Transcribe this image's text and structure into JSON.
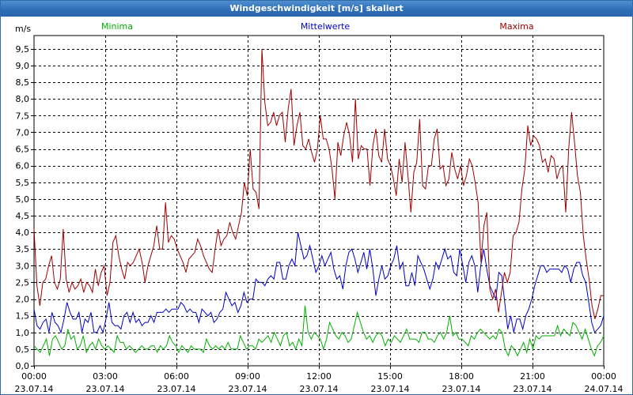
{
  "window": {
    "title": "Windgeschwindigkeit [m/s] skaliert"
  },
  "colors": {
    "minima": "#00b000",
    "mittelwerte": "#0000c8",
    "maxima": "#a00000",
    "grid": "#000000",
    "axis": "#000000"
  },
  "chart_data": {
    "type": "line",
    "title": "Windgeschwindigkeit [m/s] skaliert",
    "ylabel": "m/s",
    "xlabel": "",
    "ylim": [
      0,
      9.9
    ],
    "xlim": [
      0,
      24
    ],
    "grid": true,
    "legend_position": "top",
    "y_ticks": [
      0,
      0.5,
      1,
      1.5,
      2,
      2.5,
      3,
      3.5,
      4,
      4.5,
      5,
      5.5,
      6,
      6.5,
      7,
      7.5,
      8,
      8.5,
      9,
      9.5
    ],
    "y_tick_labels": [
      "0,0",
      "0,5",
      "1,0",
      "1,5",
      "2,0",
      "2,5",
      "3,0",
      "3,5",
      "4,0",
      "4,5",
      "5,0",
      "5,5",
      "6,0",
      "6,5",
      "7,0",
      "7,5",
      "8,0",
      "8,5",
      "9,0",
      "9,5"
    ],
    "x_ticks": [
      {
        "value": 0,
        "time": "00:00",
        "date": "23.07.14"
      },
      {
        "value": 3,
        "time": "03:00",
        "date": "23.07.14"
      },
      {
        "value": 6,
        "time": "06:00",
        "date": "23.07.14"
      },
      {
        "value": 9,
        "time": "09:00",
        "date": "23.07.14"
      },
      {
        "value": 12,
        "time": "12:00",
        "date": "23.07.14"
      },
      {
        "value": 15,
        "time": "15:00",
        "date": "23.07.14"
      },
      {
        "value": 18,
        "time": "18:00",
        "date": "23.07.14"
      },
      {
        "value": 21,
        "time": "21:00",
        "date": "23.07.14"
      },
      {
        "value": 24,
        "time": "00:00",
        "date": "24.07.14"
      }
    ],
    "series": [
      {
        "name": "Minima",
        "key": "minima",
        "values": [
          0.6,
          0.5,
          0.4,
          0.6,
          0.8,
          0.3,
          0.8,
          0.9,
          0.7,
          0.5,
          0.6,
          1.1,
          0.8,
          0.9,
          0.5,
          0.6,
          0.9,
          0.4,
          0.6,
          0.7,
          0.5,
          0.8,
          0.6,
          0.5,
          0.6,
          0.5,
          0.4,
          0.9,
          0.7,
          0.7,
          0.5,
          0.6,
          0.5,
          0.4,
          0.5,
          0.6,
          0.5,
          0.5,
          0.6,
          0.6,
          0.4,
          0.6,
          0.5,
          0.6,
          0.9,
          0.7,
          0.6,
          0.4,
          0.6,
          0.5,
          0.4,
          0.6,
          0.5,
          0.5,
          0.5,
          0.4,
          0.8,
          0.6,
          0.5,
          0.6,
          0.5,
          0.6,
          0.5,
          0.7,
          0.5,
          0.5,
          0.5,
          0.9,
          0.7,
          0.5,
          0.6,
          0.6,
          0.5,
          0.8,
          0.7,
          0.8,
          0.9,
          0.7,
          1.0,
          0.8,
          0.6,
          0.9,
          1.0,
          0.6,
          0.7,
          0.5,
          0.8,
          0.6,
          1.8,
          1.0,
          0.8,
          1.0,
          0.9,
          0.8,
          0.5,
          0.8,
          1.3,
          1.1,
          0.9,
          0.8,
          1.0,
          0.9,
          0.7,
          0.8,
          1.2,
          1.6,
          1.3,
          1.0,
          0.8,
          0.9,
          0.7,
          0.9,
          1.0,
          0.9,
          0.6,
          0.8,
          0.7,
          0.9,
          0.8,
          0.7,
          0.9,
          1.1,
          0.8,
          0.8,
          0.8,
          0.7,
          1.0,
          1.0,
          0.8,
          0.8,
          0.7,
          0.9,
          1.0,
          0.8,
          1.0,
          1.5,
          0.9,
          1.0,
          0.8,
          0.8,
          0.7,
          0.6,
          0.9,
          0.8,
          1.0,
          1.1,
          1.0,
          0.9,
          0.8,
          0.9,
          0.8,
          1.1,
          1.0,
          0.5,
          0.3,
          0.6,
          0.5,
          0.3,
          0.5,
          0.7,
          0.4,
          0.8,
          0.5,
          0.9,
          0.8,
          0.9,
          0.9,
          0.9,
          0.9,
          0.9,
          1.2,
          0.9,
          1.1,
          1.0,
          0.9,
          1.3,
          1.2,
          1.0,
          0.8,
          1.1,
          0.8,
          0.5,
          0.3,
          0.6,
          0.7,
          0.9
        ]
      },
      {
        "name": "Mittelwerte",
        "key": "mittelwerte",
        "values": [
          1.7,
          1.2,
          1.1,
          1.3,
          1.4,
          1.0,
          1.6,
          1.3,
          1.2,
          1.0,
          1.4,
          1.9,
          1.6,
          1.4,
          1.4,
          1.6,
          1.0,
          1.4,
          1.3,
          1.6,
          1.0,
          1.0,
          1.2,
          1.0,
          1.4,
          1.9,
          1.3,
          1.2,
          1.2,
          1.1,
          1.5,
          1.6,
          1.3,
          1.6,
          1.3,
          1.4,
          1.2,
          1.3,
          1.3,
          1.5,
          1.3,
          1.6,
          1.6,
          1.6,
          1.7,
          1.6,
          1.7,
          1.7,
          1.7,
          1.9,
          1.8,
          1.6,
          1.7,
          1.6,
          1.6,
          1.3,
          1.7,
          1.6,
          1.5,
          1.6,
          1.3,
          1.4,
          1.6,
          1.7,
          2.2,
          2.0,
          1.8,
          1.9,
          1.6,
          1.8,
          2.2,
          1.9,
          2.0,
          2.0,
          2.6,
          2.5,
          2.5,
          2.4,
          2.6,
          2.7,
          2.6,
          3.1,
          3.1,
          2.6,
          2.6,
          3.0,
          3.2,
          3.0,
          4.0,
          3.6,
          3.2,
          3.3,
          3.6,
          3.2,
          2.8,
          3.0,
          3.3,
          3.0,
          3.2,
          3.4,
          2.9,
          2.6,
          2.7,
          2.3,
          3.0,
          3.4,
          3.5,
          3.2,
          2.8,
          3.1,
          3.4,
          2.9,
          3.5,
          2.9,
          2.1,
          2.6,
          3.0,
          2.6,
          2.7,
          3.0,
          3.2,
          3.6,
          2.9,
          3.1,
          2.4,
          2.4,
          2.8,
          2.4,
          3.3,
          3.1,
          2.9,
          2.6,
          2.3,
          2.6,
          3.1,
          2.9,
          3.2,
          3.5,
          3.2,
          3.3,
          2.8,
          2.7,
          3.5,
          3.0,
          2.5,
          3.1,
          3.3,
          3.0,
          2.2,
          3.0,
          3.5,
          2.9,
          2.4,
          2.2,
          2.0,
          2.8,
          2.7,
          1.9,
          1.1,
          1.5,
          1.0,
          1.4,
          1.4,
          1.1,
          1.5,
          1.7,
          2.0,
          2.4,
          2.7,
          3.0,
          3.0,
          2.8,
          2.9,
          2.9,
          2.9,
          2.9,
          2.8,
          3.0,
          2.9,
          2.5,
          2.9,
          3.1,
          3.1,
          2.7,
          2.5,
          1.9,
          1.3,
          1.0,
          1.1,
          1.2,
          1.5
        ]
      },
      {
        "name": "Maxima",
        "key": "maxima",
        "values": [
          4.1,
          2.4,
          1.8,
          2.5,
          2.6,
          3.0,
          3.3,
          2.5,
          2.3,
          2.6,
          4.1,
          2.6,
          2.2,
          2.5,
          2.3,
          2.4,
          2.6,
          2.2,
          2.5,
          2.4,
          2.2,
          2.9,
          2.4,
          2.8,
          3.0,
          2.1,
          2.5,
          3.7,
          3.9,
          3.3,
          2.9,
          2.6,
          3.1,
          3.0,
          3.1,
          3.3,
          3.5,
          3.1,
          2.5,
          3.0,
          3.3,
          3.6,
          4.2,
          3.5,
          3.5,
          4.9,
          3.7,
          3.9,
          3.8,
          3.5,
          3.3,
          3.1,
          2.8,
          3.2,
          3.3,
          3.4,
          3.8,
          3.6,
          3.3,
          3.1,
          2.9,
          2.8,
          3.5,
          4.1,
          3.6,
          3.8,
          3.9,
          4.3,
          4.0,
          3.8,
          4.2,
          4.6,
          5.5,
          5.1,
          6.5,
          5.3,
          5.2,
          4.7,
          9.5,
          7.9,
          7.2,
          7.3,
          7.6,
          7.2,
          7.5,
          7.6,
          6.7,
          7.7,
          8.3,
          6.6,
          7.2,
          7.6,
          6.6,
          6.5,
          6.8,
          6.4,
          6.1,
          6.5,
          7.5,
          6.8,
          6.8,
          6.5,
          5.9,
          5.0,
          6.7,
          6.3,
          6.9,
          7.3,
          6.9,
          6.1,
          8.0,
          6.2,
          6.6,
          6.5,
          6.5,
          5.4,
          6.6,
          7.1,
          6.3,
          6.1,
          7.1,
          6.2,
          6.0,
          5.6,
          5.1,
          6.2,
          5.5,
          6.7,
          5.7,
          4.6,
          5.8,
          6.1,
          7.4,
          5.4,
          5.3,
          6.0,
          6.0,
          6.8,
          7.1,
          5.9,
          6.0,
          5.4,
          5.6,
          6.4,
          5.9,
          5.6,
          6.0,
          5.4,
          5.7,
          6.2,
          6.0,
          5.5,
          4.9,
          3.1,
          4.2,
          4.6,
          2.3,
          2.0,
          2.3,
          1.6,
          2.2,
          2.8,
          2.5,
          2.8,
          3.9,
          4.0,
          4.3,
          5.3,
          5.9,
          7.2,
          6.6,
          6.9,
          6.8,
          6.6,
          6.1,
          6.2,
          5.8,
          6.3,
          6.2,
          5.6,
          5.9,
          6.0,
          4.6,
          6.5,
          7.6,
          6.7,
          5.7,
          5.2,
          3.9,
          3.2,
          2.6,
          1.8,
          1.4,
          1.7,
          2.1,
          2.1
        ]
      }
    ]
  }
}
